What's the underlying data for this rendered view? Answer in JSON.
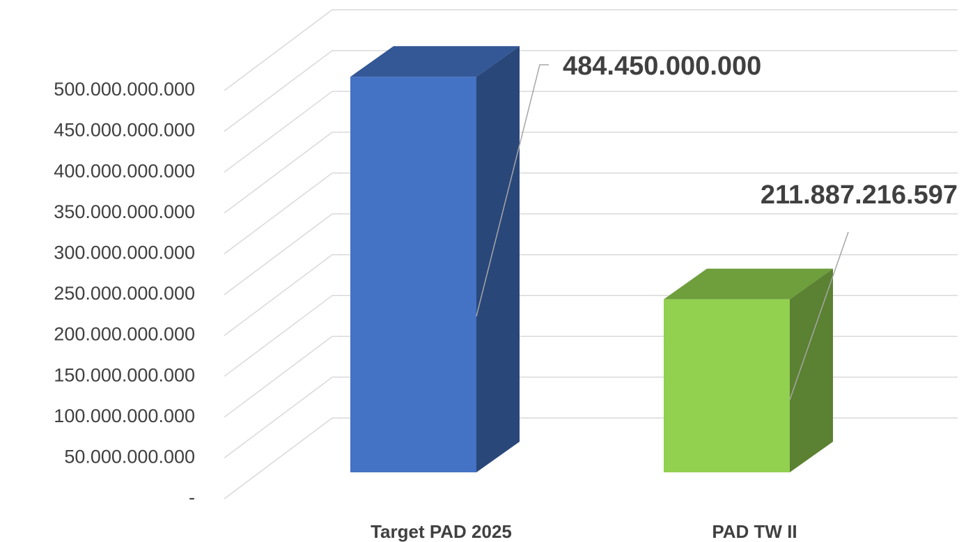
{
  "chart_data": {
    "type": "bar3d",
    "categories": [
      "Target PAD 2025",
      "PAD TW II"
    ],
    "values": [
      484450000000,
      211887216597
    ],
    "value_labels": [
      "484.450.000.000",
      "211.887.216.597"
    ],
    "colors": [
      "#4472c4",
      "#92d050"
    ],
    "ylim": [
      0,
      500000000000
    ],
    "yticks": [
      {
        "value": 0,
        "label": "-"
      },
      {
        "value": 50000000000,
        "label": "50.000.000.000"
      },
      {
        "value": 100000000000,
        "label": "100.000.000.000"
      },
      {
        "value": 150000000000,
        "label": "150.000.000.000"
      },
      {
        "value": 200000000000,
        "label": "200.000.000.000"
      },
      {
        "value": 250000000000,
        "label": "250.000.000.000"
      },
      {
        "value": 300000000000,
        "label": "300.000.000.000"
      },
      {
        "value": 350000000000,
        "label": "350.000.000.000"
      },
      {
        "value": 400000000000,
        "label": "400.000.000.000"
      },
      {
        "value": 450000000000,
        "label": "450.000.000.000"
      },
      {
        "value": 500000000000,
        "label": "500.000.000.000"
      }
    ],
    "grid": true
  }
}
